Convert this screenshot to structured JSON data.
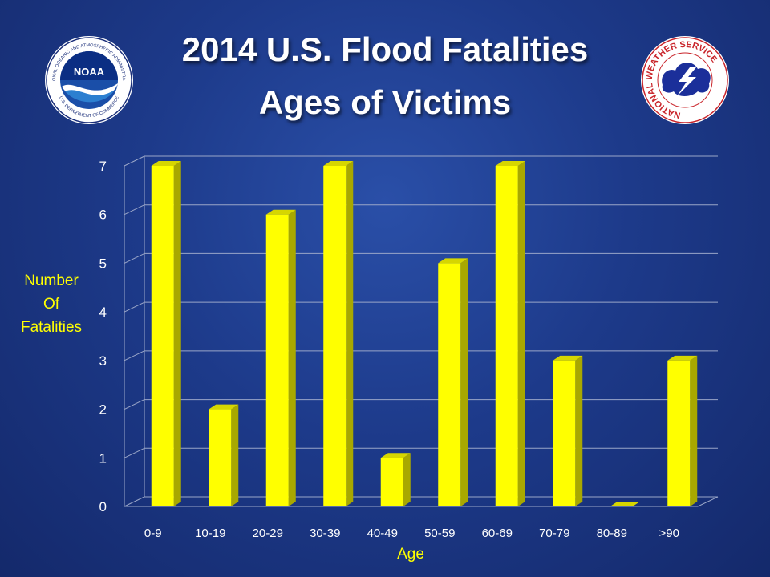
{
  "header": {
    "title_line1": "2014 U.S. Flood Fatalities",
    "title_line2": "Ages of Victims"
  },
  "logos": {
    "left": {
      "icon": "noaa-logo-icon",
      "text": "NOAA",
      "ring_text": "NATIONAL OCEANIC AND ATMOSPHERIC ADMINISTRATION",
      "ring_text_bottom": "U.S. DEPARTMENT OF COMMERCE"
    },
    "right": {
      "icon": "nws-logo-icon",
      "ring_text": "NATIONAL WEATHER SERVICE"
    }
  },
  "colors": {
    "bar_front": "#ffff00",
    "bar_side": "#a8a800",
    "bar_top": "#d6d600",
    "axis_text": "#ffffff",
    "label_text": "#ffff00",
    "grid": "#9aa6c8"
  },
  "chart_data": {
    "type": "bar",
    "categories": [
      "0-9",
      "10-19",
      "20-29",
      "30-39",
      "40-49",
      "50-59",
      "60-69",
      "70-79",
      "80-89",
      ">90"
    ],
    "values": [
      7,
      2,
      6,
      7,
      1,
      5,
      7,
      3,
      0,
      3
    ],
    "xlabel": "Age",
    "ylabel_lines": [
      "Number",
      "Of",
      "Fatalities"
    ],
    "ylim": [
      0,
      7
    ],
    "yticks": [
      "0",
      "1",
      "2",
      "3",
      "4",
      "5",
      "6",
      "7"
    ],
    "grid": true,
    "style": "3d"
  }
}
